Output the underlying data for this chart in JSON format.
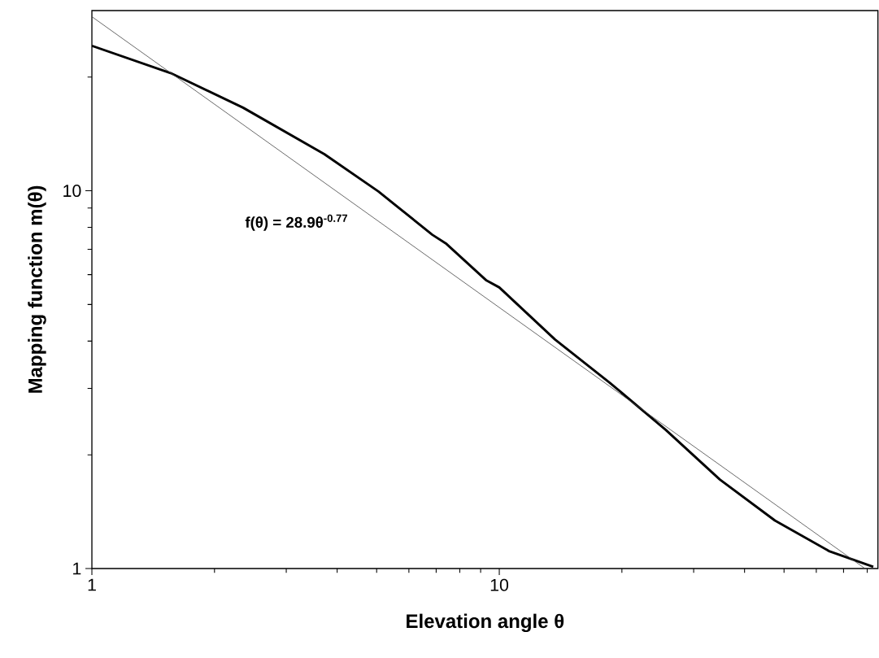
{
  "chart_data": {
    "type": "line",
    "xlabel": "Elevation angle θ",
    "ylabel": "Mapping function m(θ)",
    "log": "xy",
    "xlim": [
      1,
      85
    ],
    "ylim": [
      1,
      30
    ],
    "xticks": [
      1,
      10
    ],
    "yticks": [
      1,
      10
    ],
    "grid": false,
    "marker": "none",
    "line_style": "solid",
    "annotations": [
      "f(θ) = 28.9θ$^{-0.77}$"
    ],
    "series": [
      {
        "color": "#000000",
        "x": [
          1,
          1.56,
          2.35,
          3.72,
          5.05,
          6.85,
          7.39,
          9.3,
          10,
          13.7,
          18.7,
          25.6,
          34.8,
          47.5,
          64.7,
          82.8
        ],
        "values": [
          24.2,
          20.5,
          16.6,
          12.5,
          9.96,
          7.65,
          7.26,
          5.79,
          5.55,
          4.04,
          3.1,
          2.33,
          1.72,
          1.34,
          1.11,
          1.01
        ]
      },
      {
        "color": "#444444",
        "x": [
          1,
          79
        ],
        "values": [
          28.9,
          1
        ]
      }
    ]
  }
}
